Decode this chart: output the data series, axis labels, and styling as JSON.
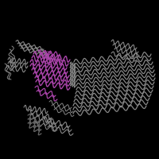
{
  "background_color": "#000000",
  "figsize": [
    2.0,
    2.0
  ],
  "dpi": 100,
  "gray_color": "#888888",
  "purple_color": "#aa44aa",
  "gray_dark": "#666666",
  "gray_light": "#aaaaaa"
}
